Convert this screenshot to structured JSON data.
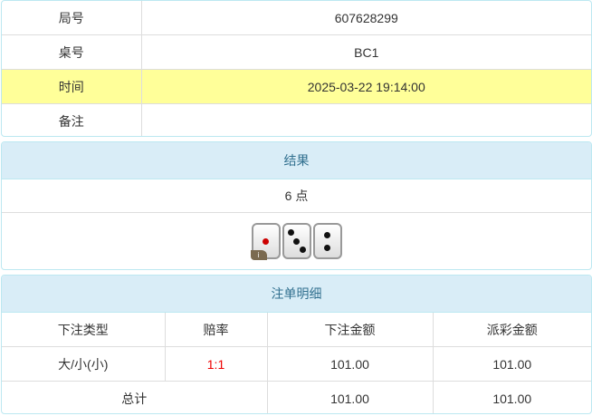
{
  "info": {
    "rows": [
      {
        "label": "局号",
        "value": "607628299"
      },
      {
        "label": "桌号",
        "value": "BC1"
      },
      {
        "label": "时间",
        "value": "2025-03-22 19:14:00"
      },
      {
        "label": "备注",
        "value": ""
      }
    ]
  },
  "result": {
    "title": "结果",
    "points": "6 点",
    "dice": [
      1,
      3,
      2
    ],
    "info_badge": "i"
  },
  "bets": {
    "title": "注单明细",
    "headers": [
      "下注类型",
      "赔率",
      "下注金额",
      "派彩金额"
    ],
    "rows": [
      {
        "type": "大/小(小)",
        "odds": "1:1",
        "amount": "101.00",
        "payout": "101.00"
      }
    ],
    "total": {
      "label": "总计",
      "amount": "101.00",
      "payout": "101.00"
    },
    "odds_color": "#ee0000",
    "highlight_color": "#ffff99",
    "header_color": "#d9edf7"
  }
}
